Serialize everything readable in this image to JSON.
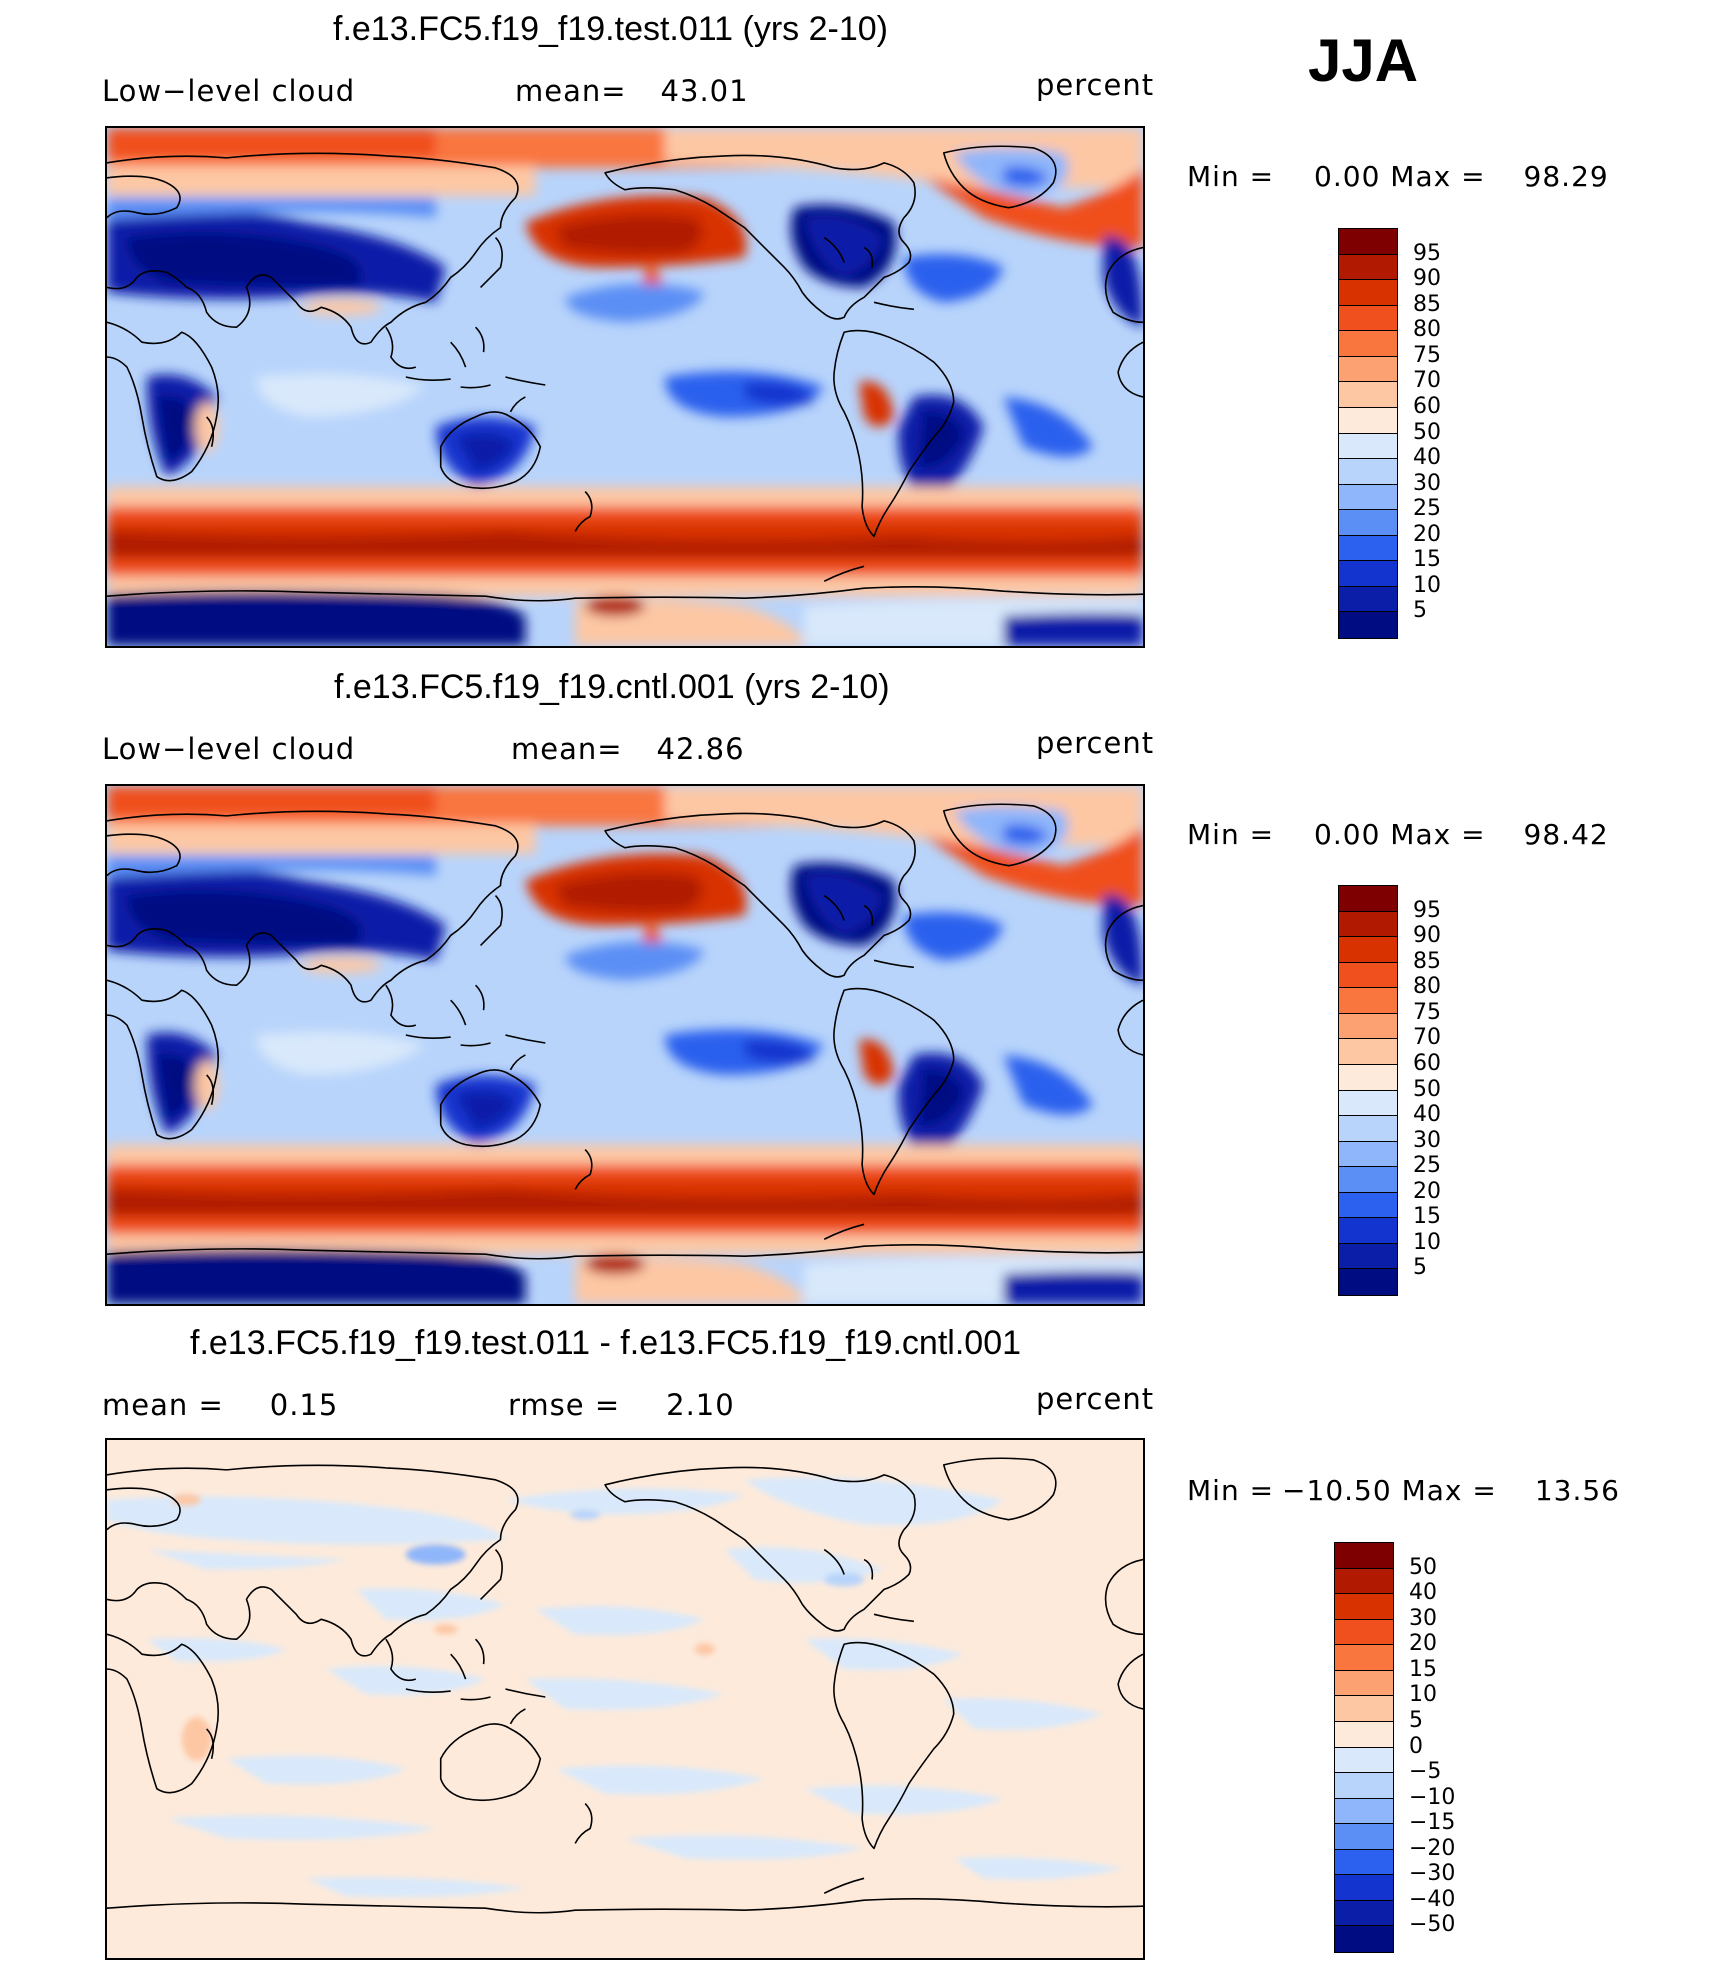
{
  "season": "JJA",
  "panels": [
    {
      "title": "f.e13.FC5.f19_f19.test.011 (yrs 2-10)",
      "left_label": "Low−level cloud",
      "stat_label": "mean=",
      "stat_value": "43.01",
      "units": "percent",
      "min_label": "Min =",
      "min_value": "0.00",
      "max_label": "Max =",
      "max_value": "98.29",
      "field": "model"
    },
    {
      "title": "f.e13.FC5.f19_f19.cntl.001 (yrs 2-10)",
      "left_label": "Low−level cloud",
      "stat_label": "mean=",
      "stat_value": "42.86",
      "units": "percent",
      "min_label": "Min =",
      "min_value": "0.00",
      "max_label": "Max =",
      "max_value": "98.42",
      "field": "model"
    },
    {
      "title": "f.e13.FC5.f19_f19.test.011 - f.e13.FC5.f19_f19.cntl.001",
      "left_label": "mean =",
      "left_value": "0.15",
      "stat_label": "rmse =",
      "stat_value": "2.10",
      "units": "percent",
      "min_label": "Min =",
      "min_value": "−10.50",
      "max_label": "Max =",
      "max_value": "13.56",
      "field": "difference"
    }
  ],
  "colorbars": {
    "model": {
      "levels": [
        "95",
        "90",
        "85",
        "80",
        "75",
        "70",
        "60",
        "50",
        "40",
        "30",
        "25",
        "20",
        "15",
        "10",
        "5"
      ],
      "colors": [
        "#7f0000",
        "#b11a00",
        "#d83200",
        "#f0501e",
        "#f9763f",
        "#fca272",
        "#fdc7a4",
        "#fdeadb",
        "#d9e9fb",
        "#b8d4fb",
        "#8fb6fa",
        "#5c8ff5",
        "#2c60ee",
        "#1434cf",
        "#0a1ea8",
        "#000d82"
      ]
    },
    "difference": {
      "levels": [
        "50",
        "40",
        "30",
        "20",
        "15",
        "10",
        "5",
        "0",
        "−5",
        "−10",
        "−15",
        "−20",
        "−30",
        "−40",
        "−50"
      ],
      "colors": [
        "#7f0000",
        "#b11a00",
        "#d83200",
        "#f0501e",
        "#f9763f",
        "#fca272",
        "#fdc7a4",
        "#fdeadb",
        "#d9e9fb",
        "#b8d4fb",
        "#8fb6fa",
        "#5c8ff5",
        "#2c60ee",
        "#1434cf",
        "#0a1ea8",
        "#000d82"
      ]
    }
  }
}
